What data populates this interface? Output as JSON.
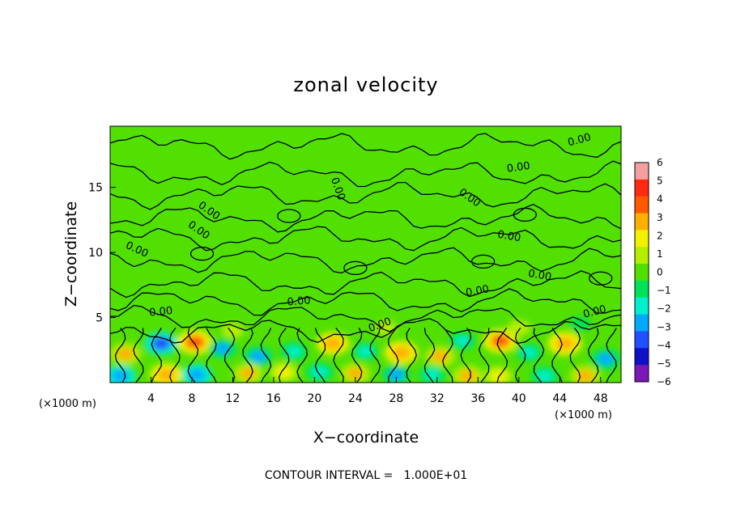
{
  "chart_data": {
    "type": "heatmap",
    "title": "zonal velocity",
    "xlabel": "X−coordinate",
    "ylabel": "Z−coordinate",
    "x_unit": "(×1000 m)",
    "z_unit": "(×1000 m)",
    "xlim": [
      0,
      50
    ],
    "ylim": [
      0,
      19.7
    ],
    "x_ticks": [
      4,
      8,
      12,
      16,
      20,
      24,
      28,
      32,
      36,
      40,
      44,
      48
    ],
    "y_ticks": [
      5,
      10,
      15
    ],
    "colorbar": {
      "ticks": [
        "6",
        "5",
        "4",
        "3",
        "2",
        "1",
        "0",
        "−1",
        "−2",
        "−3",
        "−4",
        "−5",
        "−6"
      ],
      "colors": [
        "#f4a0a0",
        "#ff2a10",
        "#ff5a00",
        "#ffb000",
        "#f2f200",
        "#b4ee00",
        "#52e000",
        "#00e25a",
        "#00efcc",
        "#00aaff",
        "#2050ff",
        "#1010c8",
        "#7a18b8"
      ]
    },
    "contour_labels": [
      "0.00",
      "0.00",
      "0.00",
      "0.00",
      "0.00",
      "0.00",
      "0.00",
      "0.00",
      "0.00",
      "0.00",
      "0.00",
      "0.00",
      "0.00",
      "0.00"
    ],
    "contour_interval_text": "CONTOUR INTERVAL =   1.000E+01",
    "background_value": 0,
    "anomalies": [
      {
        "x": 1.5,
        "z": 2.2,
        "v": 3.0
      },
      {
        "x": 5.0,
        "z": 3.0,
        "v": -3.5
      },
      {
        "x": 8.3,
        "z": 3.1,
        "v": 3.8
      },
      {
        "x": 11.0,
        "z": 2.6,
        "v": -2.5
      },
      {
        "x": 14.5,
        "z": 2.0,
        "v": -2.8
      },
      {
        "x": 18.0,
        "z": 2.4,
        "v": -2.2
      },
      {
        "x": 21.8,
        "z": 3.0,
        "v": 3.2
      },
      {
        "x": 25.0,
        "z": 2.4,
        "v": -2.0
      },
      {
        "x": 28.5,
        "z": 2.3,
        "v": 3.4
      },
      {
        "x": 32.3,
        "z": 2.0,
        "v": 2.8
      },
      {
        "x": 34.5,
        "z": 3.2,
        "v": -2.0
      },
      {
        "x": 38.2,
        "z": 3.2,
        "v": 3.6
      },
      {
        "x": 41.0,
        "z": 2.3,
        "v": -2.0
      },
      {
        "x": 44.5,
        "z": 3.0,
        "v": 3.5
      },
      {
        "x": 48.5,
        "z": 1.8,
        "v": -2.8
      },
      {
        "x": 1.0,
        "z": 0.5,
        "v": -3.0
      },
      {
        "x": 5.5,
        "z": 0.6,
        "v": 3.2
      },
      {
        "x": 8.5,
        "z": 0.6,
        "v": -3.0
      },
      {
        "x": 13.5,
        "z": 0.7,
        "v": 2.6
      },
      {
        "x": 17.0,
        "z": 0.8,
        "v": 2.4
      },
      {
        "x": 20.5,
        "z": 0.8,
        "v": -2.4
      },
      {
        "x": 24.0,
        "z": 0.7,
        "v": 2.6
      },
      {
        "x": 28.0,
        "z": 0.6,
        "v": -2.6
      },
      {
        "x": 31.5,
        "z": 0.6,
        "v": -2.2
      },
      {
        "x": 35.0,
        "z": 0.5,
        "v": 2.8
      },
      {
        "x": 38.0,
        "z": 0.5,
        "v": 2.4
      },
      {
        "x": 42.5,
        "z": 0.5,
        "v": -2.4
      },
      {
        "x": 46.5,
        "z": 0.5,
        "v": 2.8
      },
      {
        "x": 12.0,
        "z": 4.0,
        "v": 1.2
      },
      {
        "x": 27.0,
        "z": 4.2,
        "v": 1.0
      },
      {
        "x": 40.0,
        "z": 4.2,
        "v": 1.3
      },
      {
        "x": 46.0,
        "z": 4.5,
        "v": -1.0
      }
    ]
  }
}
